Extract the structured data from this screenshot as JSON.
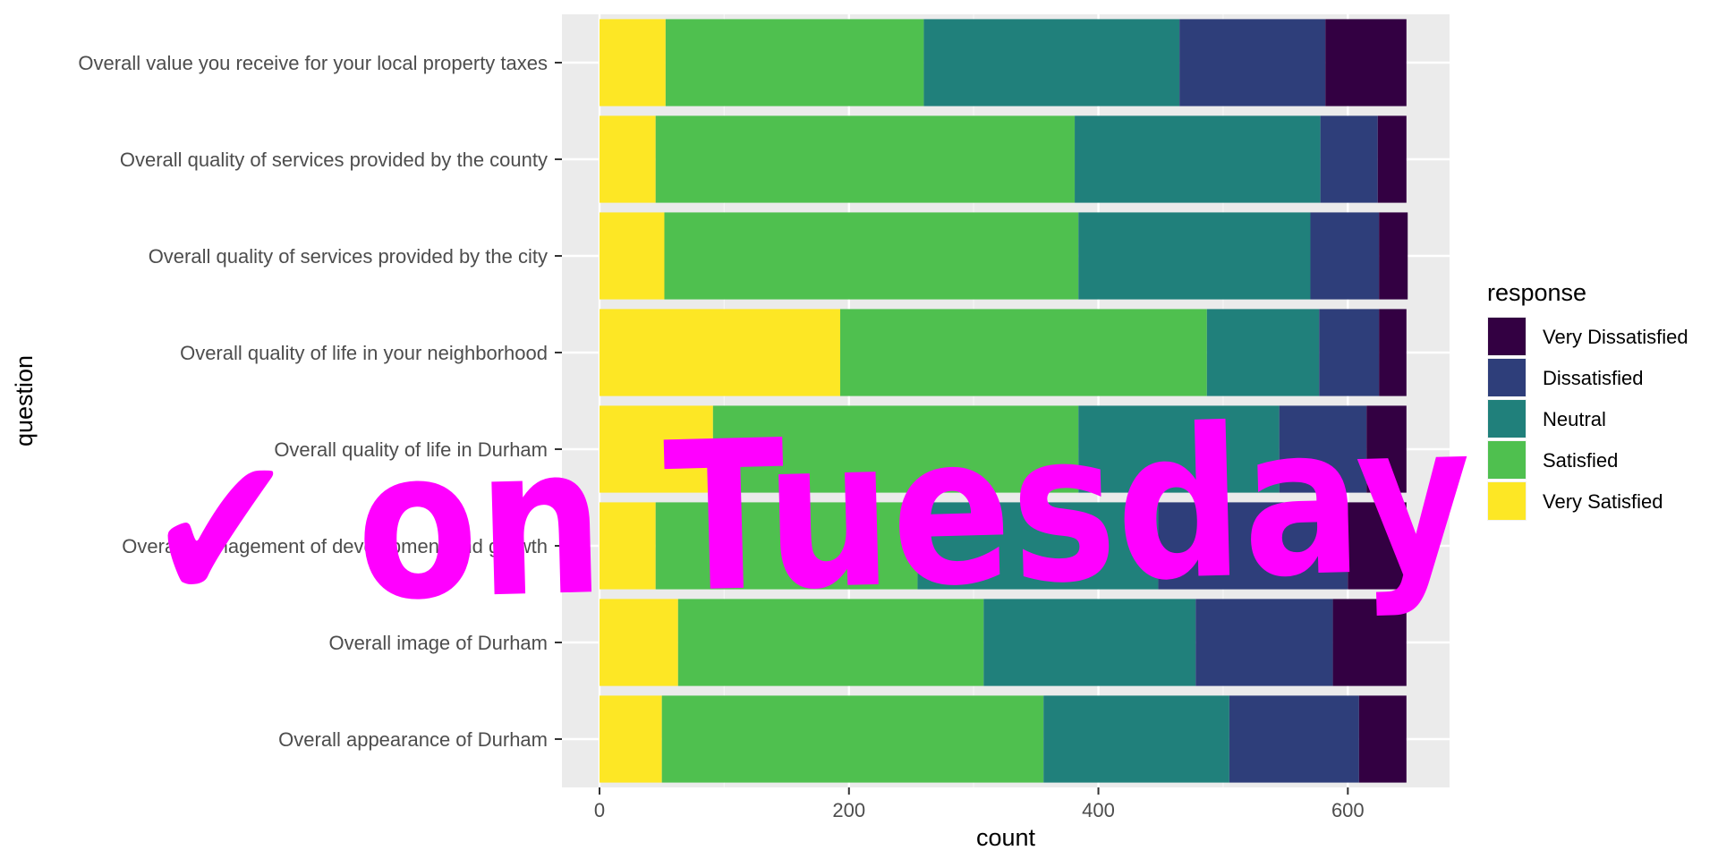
{
  "chart_data": {
    "type": "bar",
    "orientation": "horizontal",
    "stacked": true,
    "xlabel": "count",
    "ylabel": "question",
    "xlim": [
      0,
      650
    ],
    "xticks": [
      0,
      200,
      400,
      600
    ],
    "grid": true,
    "legend_position": "right",
    "legend_title": "response",
    "categories": [
      "Overall value you receive for your local property taxes",
      "Overall quality of services provided by the county",
      "Overall quality of services provided by the city",
      "Overall quality of life in your neighborhood",
      "Overall quality of life in Durham",
      "Overall management of development and growth",
      "Overall image of Durham",
      "Overall appearance of Durham"
    ],
    "series": [
      {
        "name": "Very Satisfied",
        "color": "#FDE725",
        "values": [
          53,
          45,
          52,
          193,
          91,
          45,
          63,
          50
        ]
      },
      {
        "name": "Satisfied",
        "color": "#4FC04F",
        "values": [
          207,
          336,
          332,
          294,
          293,
          210,
          245,
          306
        ]
      },
      {
        "name": "Neutral",
        "color": "#20807B",
        "values": [
          205,
          197,
          186,
          90,
          161,
          193,
          170,
          149
        ]
      },
      {
        "name": "Dissatisfied",
        "color": "#2E3E7A",
        "values": [
          117,
          46,
          55,
          48,
          70,
          152,
          110,
          104
        ]
      },
      {
        "name": "Very Dissatisfied",
        "color": "#330042",
        "values": [
          65,
          23,
          23,
          22,
          32,
          47,
          59,
          38
        ]
      }
    ]
  },
  "overlay": {
    "text": "✔ on Tuesday",
    "color": "#ff00ff"
  }
}
